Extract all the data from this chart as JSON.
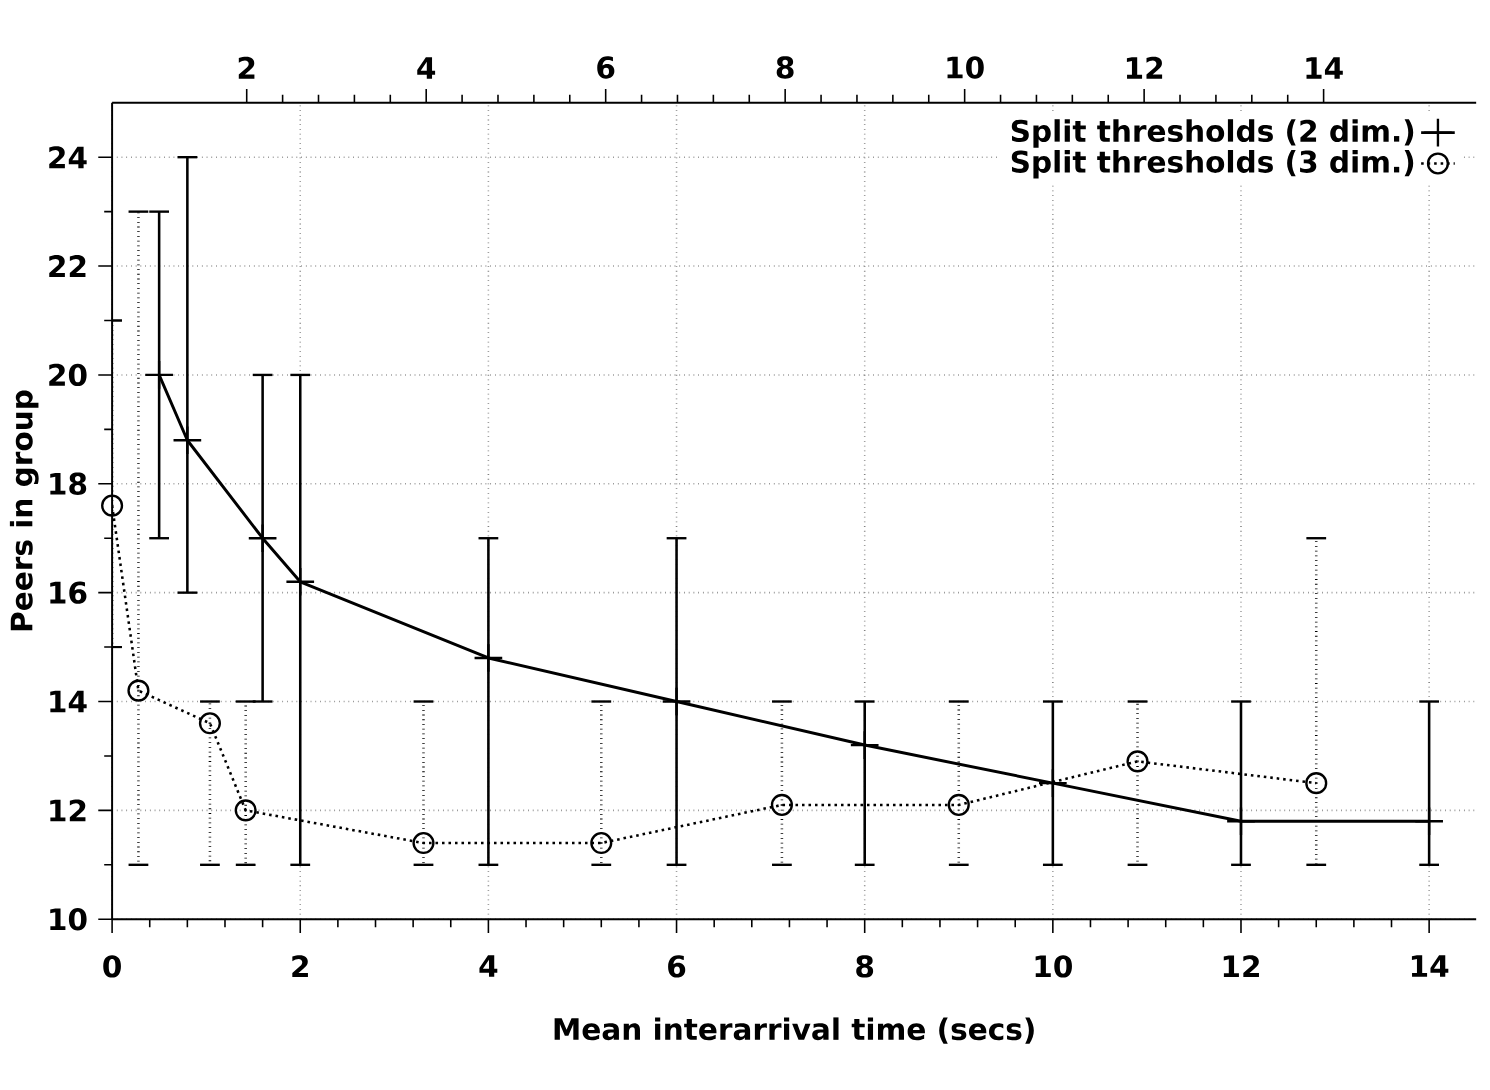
{
  "chart_data": {
    "type": "line",
    "xlabel": "Mean interarrival time (secs)",
    "ylabel": "Peers in group",
    "xlim": [
      0,
      14.5
    ],
    "xticks": [
      0,
      2,
      4,
      6,
      8,
      10,
      12,
      14
    ],
    "ylim": [
      10,
      25
    ],
    "yticks": [
      10,
      12,
      14,
      16,
      18,
      20,
      22,
      24
    ],
    "x2lim": [
      0.5,
      15.7
    ],
    "x2ticks": [
      2,
      4,
      6,
      8,
      10,
      12,
      14
    ],
    "grid": true,
    "legend": "top right",
    "series": [
      {
        "name": "Split thresholds (2 dim.)",
        "color": "#000000",
        "marker": "cross",
        "line_style": "solid",
        "x": [
          0.5,
          0.8,
          1.6,
          2,
          4,
          6,
          8,
          10,
          12,
          14
        ],
        "values": [
          20,
          18.8,
          17,
          16.2,
          14.8,
          14,
          13.2,
          12.5,
          11.8,
          11.8
        ],
        "errors": [
          [
            17,
            23
          ],
          [
            16,
            24
          ],
          [
            14,
            20
          ],
          [
            11,
            20
          ],
          [
            11,
            17
          ],
          [
            11,
            17
          ],
          [
            11,
            14
          ],
          [
            11,
            14
          ],
          [
            11,
            14
          ],
          [
            11,
            14
          ]
        ]
      },
      {
        "name": "Split thresholds (3 dim.)",
        "color": "#000000",
        "marker": "circle",
        "line_style": "dotted",
        "x": [
          0,
          0.28,
          1.04,
          1.42,
          3.31,
          5.2,
          7.12,
          9.0,
          10.9,
          12.8
        ],
        "values": [
          17.6,
          14.2,
          13.6,
          12.0,
          11.4,
          11.4,
          12.1,
          12.1,
          12.9,
          12.5
        ],
        "errors": [
          [
            15,
            21
          ],
          [
            11,
            23
          ],
          [
            11,
            14
          ],
          [
            11,
            14
          ],
          [
            11,
            14
          ],
          [
            11,
            14
          ],
          [
            11,
            14
          ],
          [
            11,
            14
          ],
          [
            11,
            14
          ],
          [
            11,
            17
          ]
        ]
      }
    ]
  }
}
